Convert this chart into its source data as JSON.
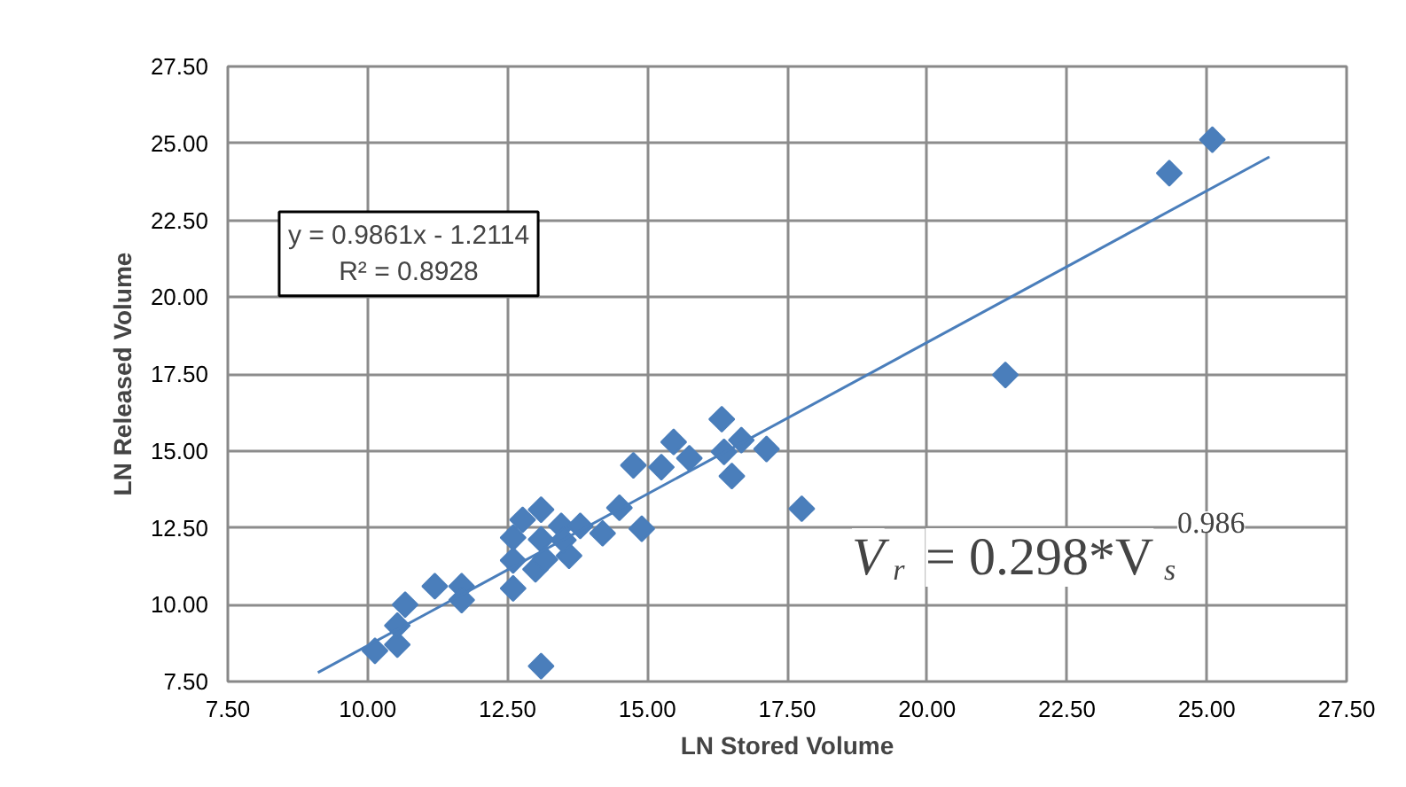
{
  "chart_data": {
    "type": "scatter",
    "xlabel": "LN Stored Volume",
    "ylabel": "LN Released Volume",
    "xlim": [
      7.5,
      27.5
    ],
    "ylim": [
      7.5,
      27.5
    ],
    "xticks": [
      {
        "value": 7.5,
        "label": "7.50"
      },
      {
        "value": 10,
        "label": "10.00"
      },
      {
        "value": 12.5,
        "label": "12.50"
      },
      {
        "value": 15,
        "label": "15.00"
      },
      {
        "value": 17.5,
        "label": "17.50"
      },
      {
        "value": 20,
        "label": "20.00"
      },
      {
        "value": 22.5,
        "label": "22.50"
      },
      {
        "value": 25,
        "label": "25.00"
      },
      {
        "value": 27.5,
        "label": "27.50"
      }
    ],
    "yticks": [
      {
        "value": 7.5,
        "label": "7.50"
      },
      {
        "value": 10,
        "label": "10.00"
      },
      {
        "value": 12.5,
        "label": "12.50"
      },
      {
        "value": 15,
        "label": "15.00"
      },
      {
        "value": 17.5,
        "label": "17.50"
      },
      {
        "value": 20,
        "label": "20.00"
      },
      {
        "value": 22.5,
        "label": "22.50"
      },
      {
        "value": 25,
        "label": "25.00"
      },
      {
        "value": 27.5,
        "label": "27.50"
      }
    ],
    "grid": true,
    "marker": "diamond",
    "series": [
      {
        "color": "#4a7ebb",
        "x": [
          10.13,
          10.53,
          10.53,
          10.67,
          11.2,
          11.68,
          11.68,
          12.6,
          12.6,
          12.6,
          12.77,
          13.1,
          13.1,
          13.0,
          13.17,
          13.1,
          13.46,
          13.6,
          13.5,
          13.8,
          14.2,
          14.5,
          14.75,
          14.9,
          15.25,
          15.47,
          15.75,
          16.33,
          16.37,
          16.51,
          16.68,
          17.13,
          17.76,
          21.4,
          24.33,
          25.1
        ],
        "values": [
          8.5,
          8.7,
          9.32,
          10.0,
          10.6,
          10.6,
          10.15,
          10.53,
          11.44,
          12.18,
          12.76,
          13.09,
          12.12,
          11.15,
          11.47,
          8.0,
          12.56,
          11.59,
          12.1,
          12.56,
          12.32,
          13.15,
          14.53,
          12.47,
          14.47,
          15.29,
          14.76,
          16.03,
          14.97,
          14.18,
          15.35,
          15.06,
          13.12,
          17.47,
          24.03,
          25.12
        ]
      },
      {
        "type": "line",
        "color": "#4a7ebb",
        "marker": "none",
        "x": [
          9.11,
          26.12
        ],
        "values": [
          7.79,
          24.56
        ]
      }
    ],
    "annotations": [
      "y = 0.9861x - 1.2114\nR² = 0.8928",
      "V$_{r}$ = 0.298*V$_{s}$$^{0.986}$"
    ]
  }
}
